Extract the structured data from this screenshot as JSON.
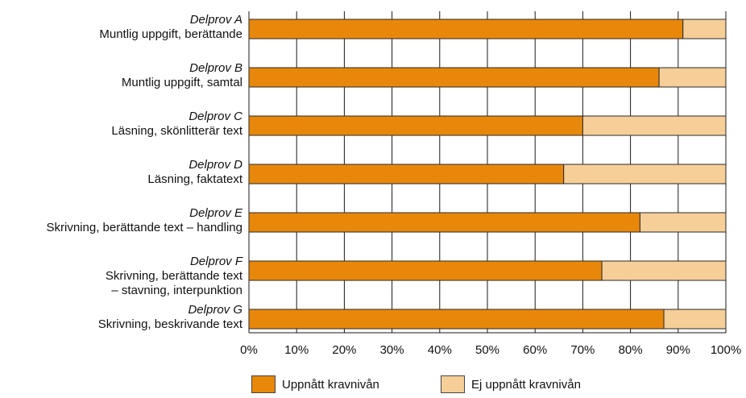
{
  "chart_data": {
    "type": "bar",
    "orientation": "horizontal",
    "stacked": true,
    "categories": [
      {
        "title": "Delprov A",
        "lines": [
          "Muntlig uppgift, berättande"
        ]
      },
      {
        "title": "Delprov B",
        "lines": [
          "Muntlig uppgift, samtal"
        ]
      },
      {
        "title": "Delprov C",
        "lines": [
          "Läsning, skönlitterär text"
        ]
      },
      {
        "title": "Delprov D",
        "lines": [
          "Läsning, faktatext"
        ]
      },
      {
        "title": "Delprov E",
        "lines": [
          "Skrivning, berättande text – handling"
        ]
      },
      {
        "title": "Delprov F",
        "lines": [
          "Skrivning, berättande text",
          "– stavning, interpunktion"
        ]
      },
      {
        "title": "Delprov G",
        "lines": [
          "Skrivning, beskrivande text"
        ]
      }
    ],
    "series": [
      {
        "name": "Uppnått kravnivån",
        "color": "#E8880A",
        "values": [
          91,
          86,
          70,
          66,
          82,
          74,
          87
        ]
      },
      {
        "name": "Ej uppnått kravnivån",
        "color": "#F6CF98",
        "values": [
          9,
          14,
          30,
          34,
          18,
          26,
          13
        ]
      }
    ],
    "xlim": [
      0,
      100
    ],
    "x_ticks": [
      "0%",
      "10%",
      "20%",
      "30%",
      "40%",
      "50%",
      "60%",
      "70%",
      "80%",
      "90%",
      "100%"
    ],
    "grid": "vertical",
    "legend_position": "bottom"
  }
}
